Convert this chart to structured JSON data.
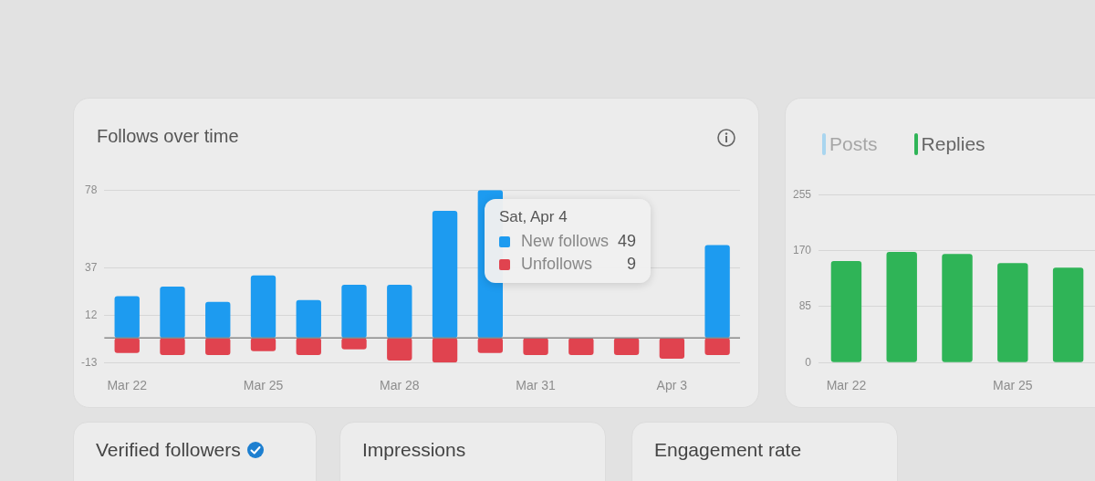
{
  "chart_data": [
    {
      "type": "bar",
      "title": "Follows over time",
      "categories": [
        "Mar 22",
        null,
        null,
        "Mar 25",
        null,
        null,
        "Mar 28",
        null,
        null,
        "Mar 31",
        null,
        null,
        "Apr 3",
        null
      ],
      "series": [
        {
          "name": "New follows",
          "color": "#1d9bf0",
          "values": [
            22,
            27,
            19,
            33,
            20,
            28,
            28,
            67,
            78,
            null,
            null,
            null,
            null,
            49
          ]
        },
        {
          "name": "Unfollows",
          "color": "#e0434f",
          "values": [
            -8,
            -9,
            -9,
            -7,
            -9,
            -6,
            -12,
            -13,
            -8,
            -9,
            -9,
            -9,
            -11,
            -9
          ]
        }
      ],
      "stacked": true,
      "ylim": [
        -13,
        78
      ],
      "yticks": [
        -13,
        12,
        37,
        78
      ],
      "grid": "y",
      "legend": "top right",
      "ref_lines": [
        {
          "axis": "y",
          "value": 0
        }
      ],
      "annotations": [
        "Sat, Apr 4",
        "49",
        "9"
      ]
    },
    {
      "type": "bar",
      "categories": [
        "Mar 22",
        null,
        null,
        "Mar 25",
        null
      ],
      "series": [
        {
          "name": "Posts",
          "color": "#a9d5ef",
          "values": [
            null,
            null,
            null,
            null,
            null
          ]
        },
        {
          "name": "Replies",
          "color": "#2fb457",
          "values": [
            154,
            168,
            165,
            151,
            144
          ]
        }
      ],
      "stacked": true,
      "ylim": [
        0,
        255
      ],
      "yticks": [
        0,
        85,
        170,
        255
      ],
      "grid": "y",
      "legend": "top left"
    },
    {
      "type": "other",
      "annotations": [
        "Verified followers",
        "Impressions",
        "Engagement rate"
      ]
    }
  ]
}
